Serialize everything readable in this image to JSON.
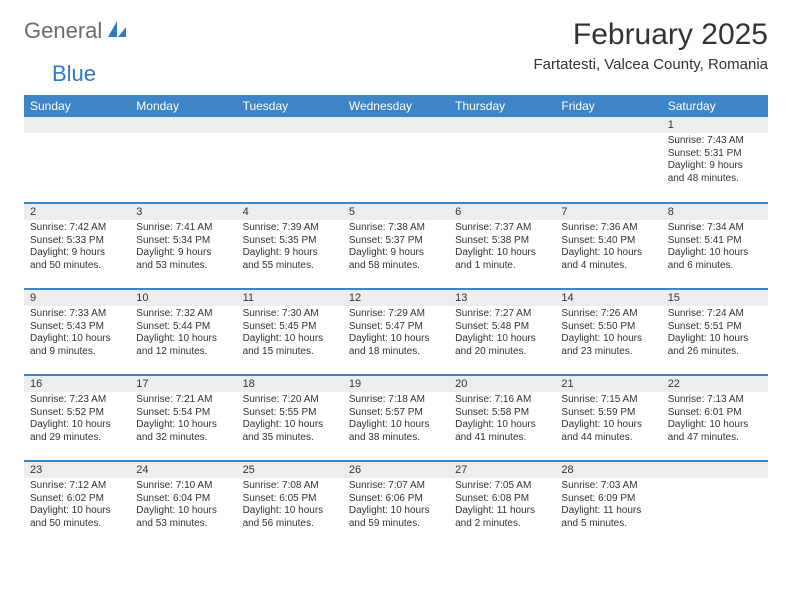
{
  "logo": {
    "text1": "General",
    "text2": "Blue"
  },
  "title": "February 2025",
  "location": "Fartatesti, Valcea County, Romania",
  "colors": {
    "header_bg": "#3d85c6",
    "header_fg": "#ffffff",
    "daynum_bg": "#ededed",
    "row_border": "#3d85c6",
    "text": "#333333",
    "logo_gray": "#6b6b6b",
    "logo_blue": "#2f7bbf",
    "page_bg": "#ffffff"
  },
  "weekdays": [
    "Sunday",
    "Monday",
    "Tuesday",
    "Wednesday",
    "Thursday",
    "Friday",
    "Saturday"
  ],
  "weeks": [
    [
      null,
      null,
      null,
      null,
      null,
      null,
      {
        "n": "1",
        "sr": "7:43 AM",
        "ss": "5:31 PM",
        "dl": "9 hours and 48 minutes."
      }
    ],
    [
      {
        "n": "2",
        "sr": "7:42 AM",
        "ss": "5:33 PM",
        "dl": "9 hours and 50 minutes."
      },
      {
        "n": "3",
        "sr": "7:41 AM",
        "ss": "5:34 PM",
        "dl": "9 hours and 53 minutes."
      },
      {
        "n": "4",
        "sr": "7:39 AM",
        "ss": "5:35 PM",
        "dl": "9 hours and 55 minutes."
      },
      {
        "n": "5",
        "sr": "7:38 AM",
        "ss": "5:37 PM",
        "dl": "9 hours and 58 minutes."
      },
      {
        "n": "6",
        "sr": "7:37 AM",
        "ss": "5:38 PM",
        "dl": "10 hours and 1 minute."
      },
      {
        "n": "7",
        "sr": "7:36 AM",
        "ss": "5:40 PM",
        "dl": "10 hours and 4 minutes."
      },
      {
        "n": "8",
        "sr": "7:34 AM",
        "ss": "5:41 PM",
        "dl": "10 hours and 6 minutes."
      }
    ],
    [
      {
        "n": "9",
        "sr": "7:33 AM",
        "ss": "5:43 PM",
        "dl": "10 hours and 9 minutes."
      },
      {
        "n": "10",
        "sr": "7:32 AM",
        "ss": "5:44 PM",
        "dl": "10 hours and 12 minutes."
      },
      {
        "n": "11",
        "sr": "7:30 AM",
        "ss": "5:45 PM",
        "dl": "10 hours and 15 minutes."
      },
      {
        "n": "12",
        "sr": "7:29 AM",
        "ss": "5:47 PM",
        "dl": "10 hours and 18 minutes."
      },
      {
        "n": "13",
        "sr": "7:27 AM",
        "ss": "5:48 PM",
        "dl": "10 hours and 20 minutes."
      },
      {
        "n": "14",
        "sr": "7:26 AM",
        "ss": "5:50 PM",
        "dl": "10 hours and 23 minutes."
      },
      {
        "n": "15",
        "sr": "7:24 AM",
        "ss": "5:51 PM",
        "dl": "10 hours and 26 minutes."
      }
    ],
    [
      {
        "n": "16",
        "sr": "7:23 AM",
        "ss": "5:52 PM",
        "dl": "10 hours and 29 minutes."
      },
      {
        "n": "17",
        "sr": "7:21 AM",
        "ss": "5:54 PM",
        "dl": "10 hours and 32 minutes."
      },
      {
        "n": "18",
        "sr": "7:20 AM",
        "ss": "5:55 PM",
        "dl": "10 hours and 35 minutes."
      },
      {
        "n": "19",
        "sr": "7:18 AM",
        "ss": "5:57 PM",
        "dl": "10 hours and 38 minutes."
      },
      {
        "n": "20",
        "sr": "7:16 AM",
        "ss": "5:58 PM",
        "dl": "10 hours and 41 minutes."
      },
      {
        "n": "21",
        "sr": "7:15 AM",
        "ss": "5:59 PM",
        "dl": "10 hours and 44 minutes."
      },
      {
        "n": "22",
        "sr": "7:13 AM",
        "ss": "6:01 PM",
        "dl": "10 hours and 47 minutes."
      }
    ],
    [
      {
        "n": "23",
        "sr": "7:12 AM",
        "ss": "6:02 PM",
        "dl": "10 hours and 50 minutes."
      },
      {
        "n": "24",
        "sr": "7:10 AM",
        "ss": "6:04 PM",
        "dl": "10 hours and 53 minutes."
      },
      {
        "n": "25",
        "sr": "7:08 AM",
        "ss": "6:05 PM",
        "dl": "10 hours and 56 minutes."
      },
      {
        "n": "26",
        "sr": "7:07 AM",
        "ss": "6:06 PM",
        "dl": "10 hours and 59 minutes."
      },
      {
        "n": "27",
        "sr": "7:05 AM",
        "ss": "6:08 PM",
        "dl": "11 hours and 2 minutes."
      },
      {
        "n": "28",
        "sr": "7:03 AM",
        "ss": "6:09 PM",
        "dl": "11 hours and 5 minutes."
      },
      null
    ]
  ],
  "labels": {
    "sunrise": "Sunrise:",
    "sunset": "Sunset:",
    "daylight": "Daylight:"
  }
}
